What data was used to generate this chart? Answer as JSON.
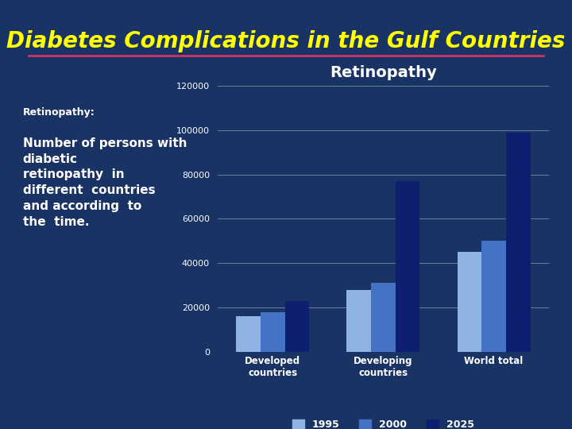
{
  "title": "Diabetes Complications in the Gulf Countries",
  "chart_title": "Retinopathy",
  "background_color": "#1a3365",
  "title_color": "#ffff00",
  "chart_bg_color": "#1a3365",
  "categories": [
    "Developed\ncountries",
    "Developing\ncountries",
    "World total"
  ],
  "series": {
    "1995": [
      16000,
      28000,
      45000
    ],
    "2000": [
      18000,
      31000,
      50000
    ],
    "2025": [
      23000,
      77000,
      99000
    ]
  },
  "colors": {
    "1995": "#8fb4e3",
    "2000": "#4472c4",
    "2025": "#0d1f6e"
  },
  "ylim": [
    0,
    120000
  ],
  "yticks": [
    0,
    20000,
    40000,
    60000,
    80000,
    100000,
    120000
  ],
  "left_text_title": "Retinopathy:",
  "left_text_body": "Number of persons with\ndiabetic\nretinopathy  in\ndifferent  countries\nand according  to\nthe  time.",
  "title_fontsize": 20,
  "chart_title_fontsize": 14,
  "axis_text_color": "#ffffff",
  "grid_color": "#ffffff",
  "separator_line_color": "#cc3366"
}
